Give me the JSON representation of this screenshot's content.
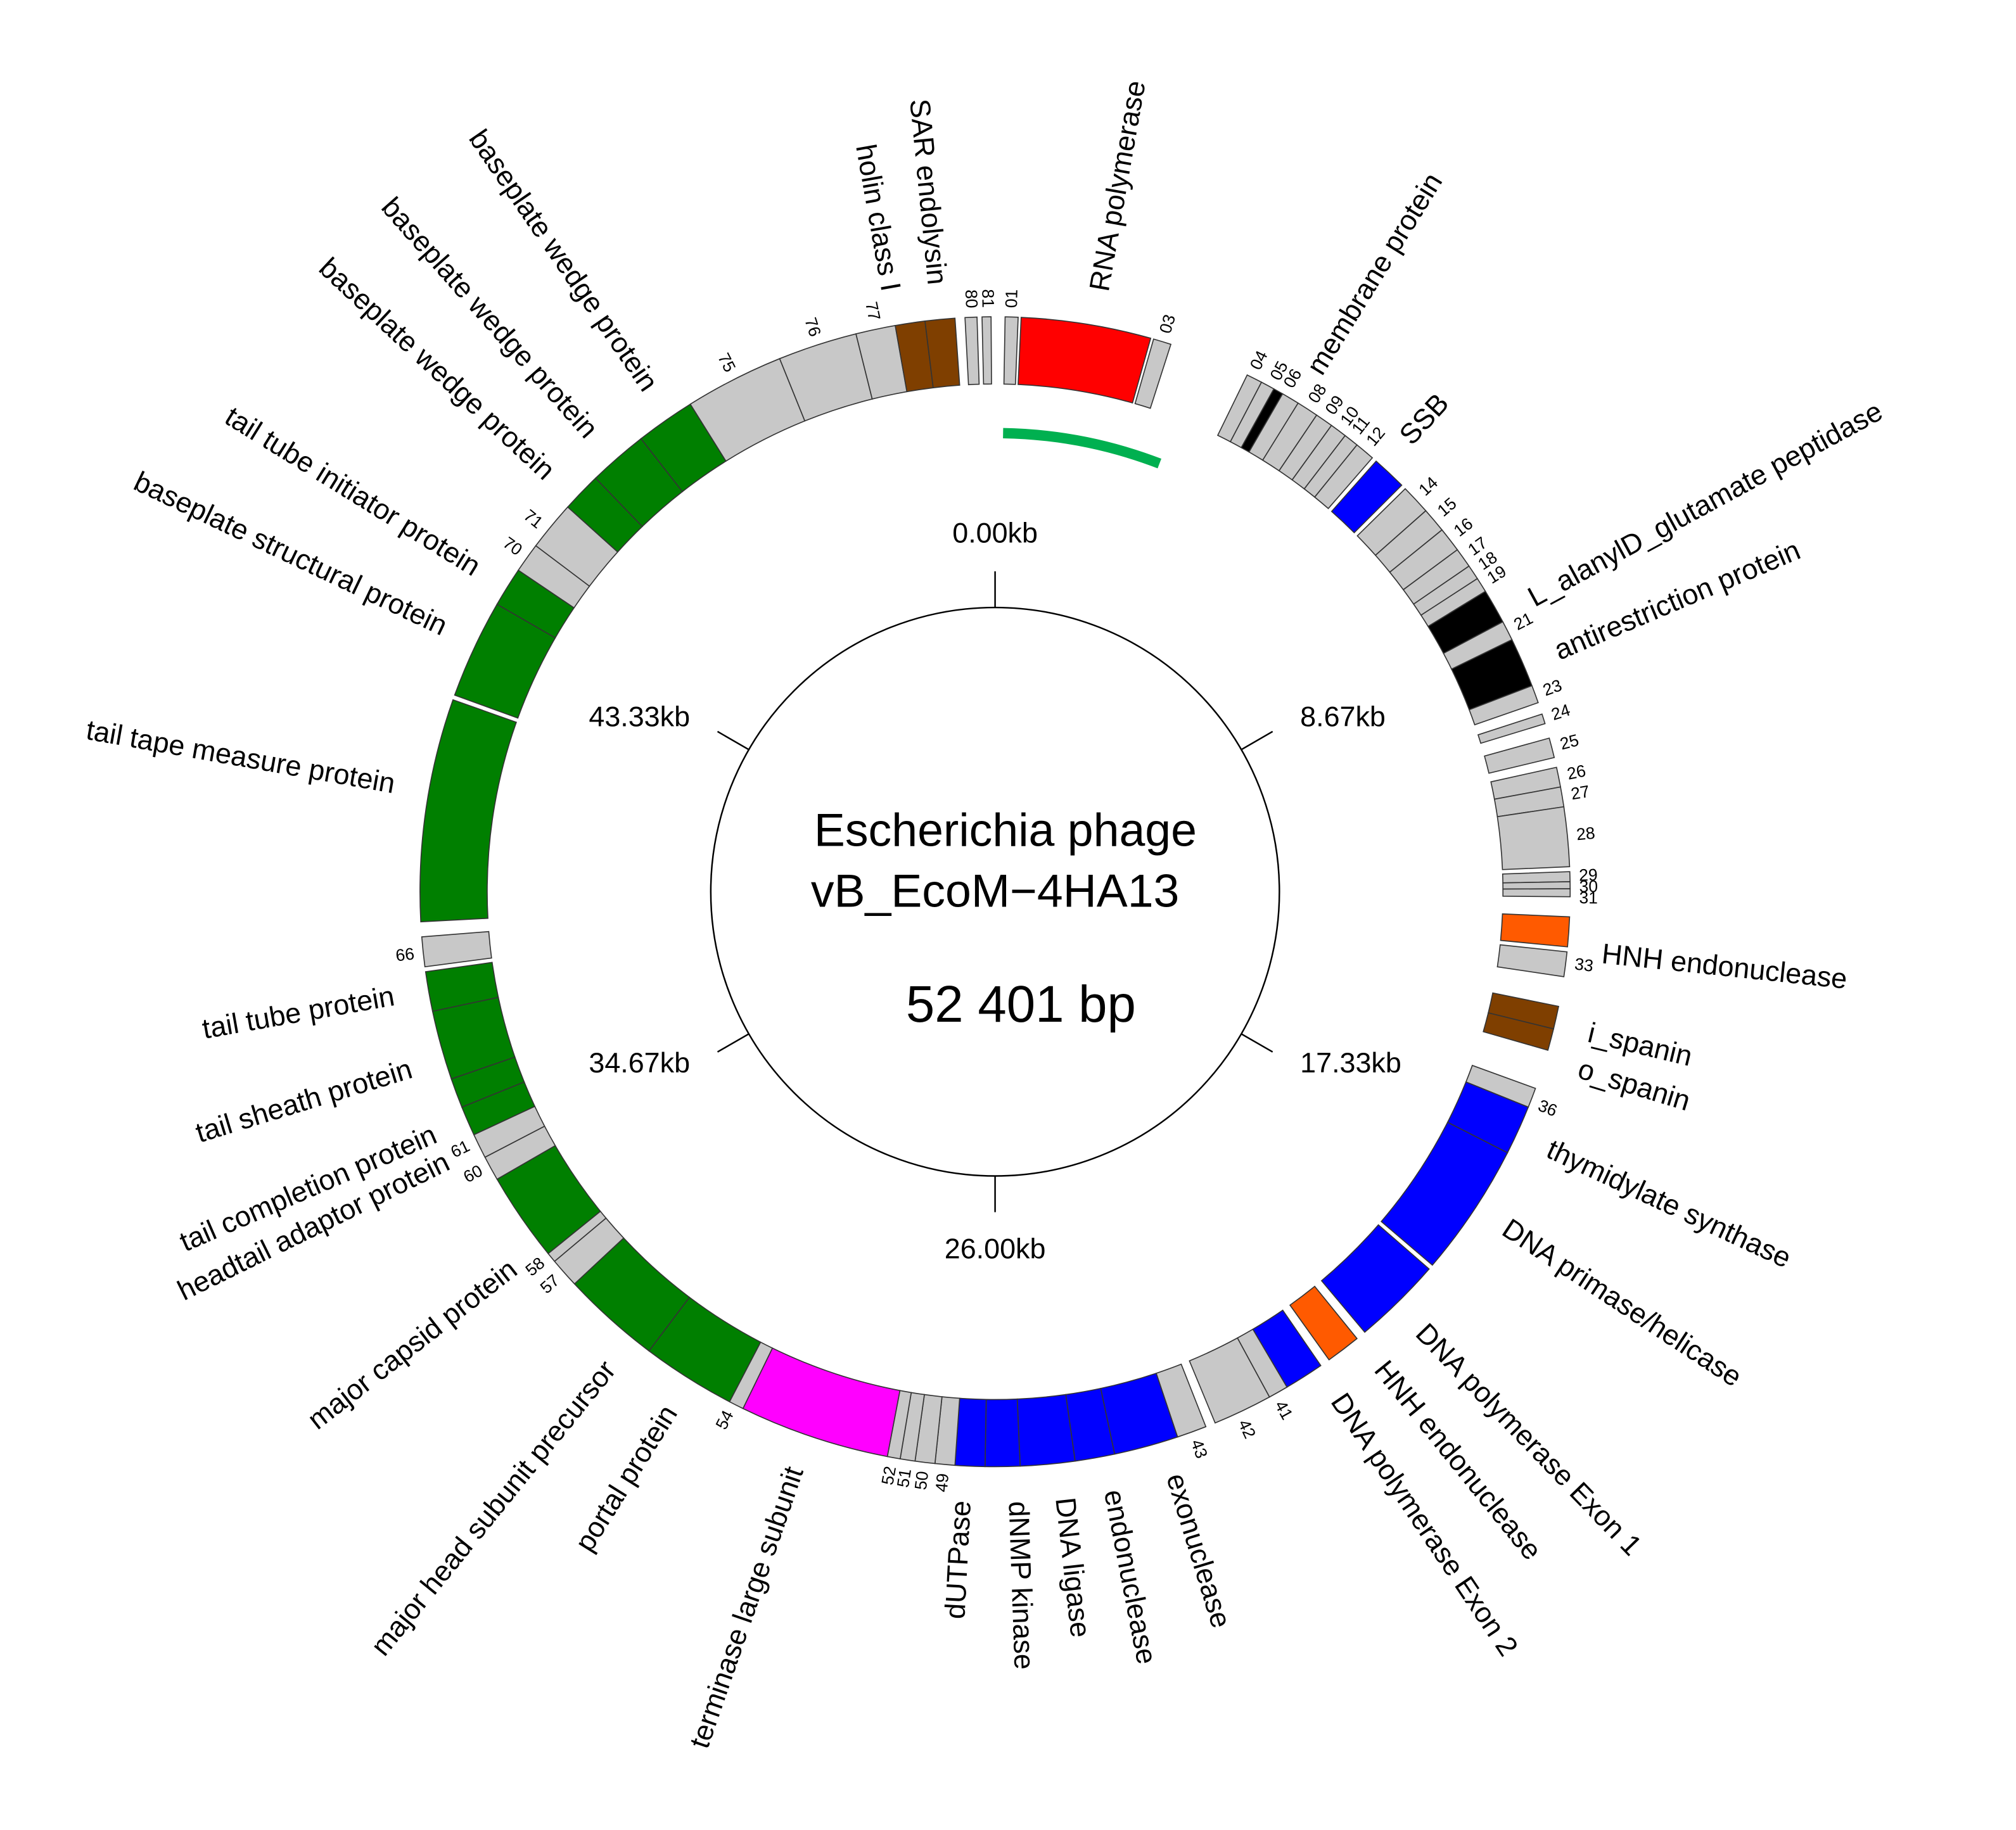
{
  "center": {
    "lines": [
      "Escherichia phage",
      "vB_EcoM−4HA13"
    ],
    "length": "52 401 bp"
  },
  "ticks": [
    "0.00kb",
    "8.67kb",
    "17.33kb",
    "26.00kb",
    "34.67kb",
    "43.33kb"
  ],
  "genes": [
    {
      "label": "01"
    },
    {
      "label": "RNA polymerase"
    },
    {
      "label": "03"
    },
    {
      "label": "04"
    },
    {
      "label": "05"
    },
    {
      "label": "06"
    },
    {
      "label": "08"
    },
    {
      "label": "09"
    },
    {
      "label": "10"
    },
    {
      "label": "11"
    },
    {
      "label": "12"
    },
    {
      "label": "membrane protein"
    },
    {
      "label": "SSB"
    },
    {
      "label": "14"
    },
    {
      "label": "15"
    },
    {
      "label": "16"
    },
    {
      "label": "17"
    },
    {
      "label": "18"
    },
    {
      "label": "19"
    },
    {
      "label": "L_alanylD_glutamate peptidase"
    },
    {
      "label": "21"
    },
    {
      "label": "antirestriction protein"
    },
    {
      "label": "23"
    },
    {
      "label": "24"
    },
    {
      "label": "25"
    },
    {
      "label": "26"
    },
    {
      "label": "27"
    },
    {
      "label": "28"
    },
    {
      "label": "29"
    },
    {
      "label": "30"
    },
    {
      "label": "31"
    },
    {
      "label": "HNH endonuclease"
    },
    {
      "label": "33"
    },
    {
      "label": "i_spanin"
    },
    {
      "label": "o_spanin"
    },
    {
      "label": "36"
    },
    {
      "label": "thymidylate synthase"
    },
    {
      "label": "DNA primase/helicase"
    },
    {
      "label": "DNA polymerase Exon 1"
    },
    {
      "label": "HNH endonuclease"
    },
    {
      "label": "DNA polymerase Exon 2"
    },
    {
      "label": "41"
    },
    {
      "label": "42"
    },
    {
      "label": "43"
    },
    {
      "label": "exonuclease"
    },
    {
      "label": "endonuclease"
    },
    {
      "label": "DNA ligase"
    },
    {
      "label": "dNMP kinase"
    },
    {
      "label": "dUTPase"
    },
    {
      "label": "49"
    },
    {
      "label": "50"
    },
    {
      "label": "51"
    },
    {
      "label": "52"
    },
    {
      "label": "terminase large subunit"
    },
    {
      "label": "54"
    },
    {
      "label": "portal protein"
    },
    {
      "label": "major head subunit precursor"
    },
    {
      "label": "57"
    },
    {
      "label": "58"
    },
    {
      "label": "major capsid protein"
    },
    {
      "label": "60"
    },
    {
      "label": "61"
    },
    {
      "label": "headtail adaptor protein"
    },
    {
      "label": "tail completion protein"
    },
    {
      "label": "tail sheath protein"
    },
    {
      "label": "tail tube protein"
    },
    {
      "label": "66"
    },
    {
      "label": "tail tape measure protein"
    },
    {
      "label": "baseplate structural protein"
    },
    {
      "label": "tail tube initiator protein"
    },
    {
      "label": "70"
    },
    {
      "label": "71"
    },
    {
      "label": "baseplate wedge protein"
    },
    {
      "label": "baseplate wedge protein"
    },
    {
      "label": "baseplate wedge protein"
    },
    {
      "label": "75"
    },
    {
      "label": "76"
    },
    {
      "label": "77"
    },
    {
      "label": "holin class I"
    },
    {
      "label": "SAR endolysin"
    },
    {
      "label": "80"
    },
    {
      "label": "81"
    }
  ]
}
